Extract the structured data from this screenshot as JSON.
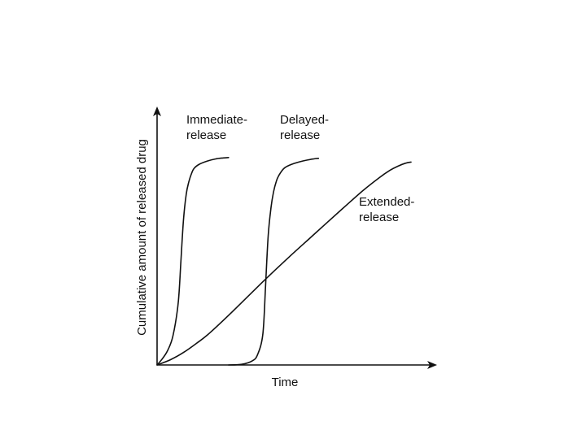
{
  "chart_data": {
    "type": "line",
    "title": "",
    "xlabel": "Time",
    "ylabel": "Cumulative amount of released drug",
    "xlim": [
      0,
      100
    ],
    "ylim": [
      0,
      100
    ],
    "grid": false,
    "legend": "none",
    "series": [
      {
        "label_lines": [
          "Immediate-",
          "release"
        ],
        "color": "#111111",
        "x": [
          0,
          2,
          4,
          6,
          8,
          9,
          10,
          11,
          12,
          13,
          14,
          16,
          19,
          22,
          25,
          27
        ],
        "y": [
          0,
          3,
          7,
          14,
          30,
          50,
          70,
          82,
          88,
          92,
          94.5,
          96.5,
          98,
          99,
          99.5,
          99.7
        ]
      },
      {
        "label_lines": [
          "Delayed-",
          "release"
        ],
        "color": "#111111",
        "x": [
          27,
          32,
          36,
          38,
          40,
          41,
          42,
          43,
          44,
          45,
          46,
          48,
          51,
          55,
          59,
          61
        ],
        "y": [
          0,
          0.3,
          2,
          5,
          15,
          38,
          62,
          75,
          83,
          88,
          91,
          94.5,
          96.5,
          98,
          99,
          99.3
        ]
      },
      {
        "label_lines": [
          "Extended-",
          "release"
        ],
        "color": "#111111",
        "x": [
          0,
          5,
          10,
          15,
          20,
          30,
          40,
          50,
          60,
          70,
          78,
          84,
          88,
          91,
          94,
          96
        ],
        "y": [
          0,
          2.5,
          6,
          10.5,
          15.5,
          27.5,
          40,
          52,
          63.5,
          75,
          84,
          90,
          93.5,
          95.5,
          97,
          97.5
        ]
      }
    ]
  }
}
